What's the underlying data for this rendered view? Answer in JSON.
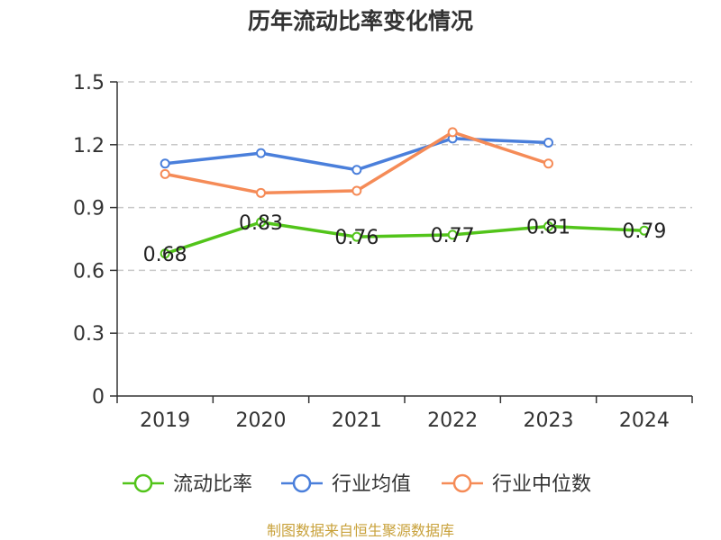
{
  "chart_data": {
    "type": "line",
    "title": "历年流动比率变化情况",
    "categories": [
      "2019",
      "2020",
      "2021",
      "2022",
      "2023",
      "2024"
    ],
    "ylim": [
      0,
      1.5
    ],
    "yticks": [
      "0",
      "0.3",
      "0.6",
      "0.9",
      "1.2",
      "1.5"
    ],
    "grid": true,
    "legend_position": "bottom",
    "series": [
      {
        "name": "流动比率",
        "color": "#52c41a",
        "values": [
          0.68,
          0.83,
          0.76,
          0.77,
          0.81,
          0.79
        ],
        "labels": [
          "0.68",
          "0.83",
          "0.76",
          "0.77",
          "0.81",
          "0.79"
        ]
      },
      {
        "name": "行业均值",
        "color": "#4a7fdb",
        "values": [
          1.11,
          1.16,
          1.08,
          1.23,
          1.21,
          null
        ]
      },
      {
        "name": "行业中位数",
        "color": "#f58b57",
        "values": [
          1.06,
          0.97,
          0.98,
          1.26,
          1.11,
          null
        ]
      }
    ]
  },
  "source_text": "制图数据来自恒生聚源数据库"
}
